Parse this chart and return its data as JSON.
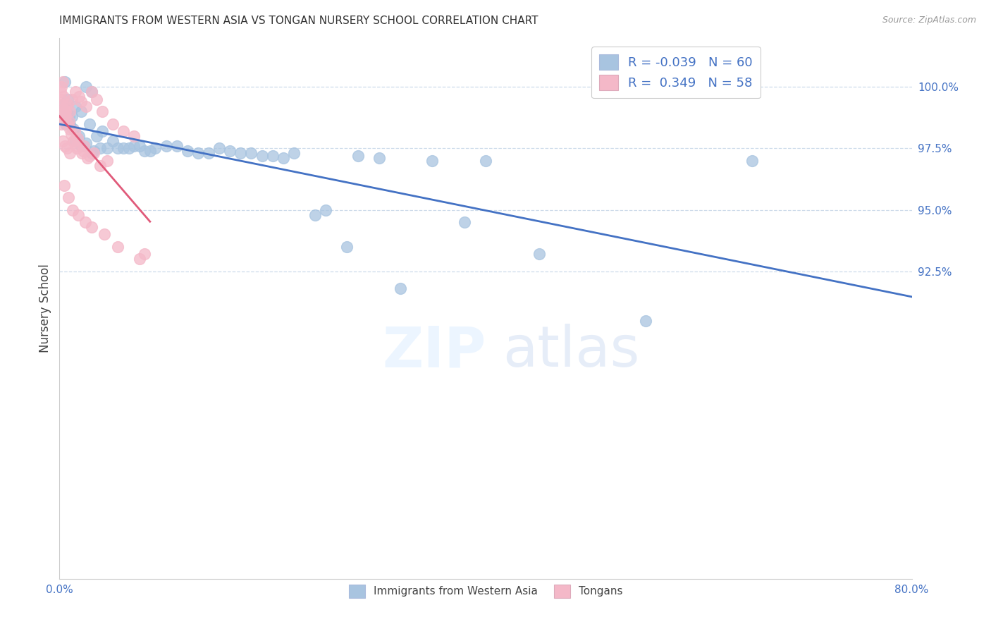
{
  "title": "IMMIGRANTS FROM WESTERN ASIA VS TONGAN NURSERY SCHOOL CORRELATION CHART",
  "source": "Source: ZipAtlas.com",
  "ylabel": "Nursery School",
  "xlim": [
    0.0,
    80.0
  ],
  "ylim": [
    80.0,
    102.0
  ],
  "legend_blue_r": "-0.039",
  "legend_blue_n": "60",
  "legend_pink_r": "0.349",
  "legend_pink_n": "58",
  "legend_label_blue": "Immigrants from Western Asia",
  "legend_label_pink": "Tongans",
  "blue_color": "#a8c4e0",
  "pink_color": "#f4b8c8",
  "line_blue": "#4472c4",
  "line_pink": "#e05a7a",
  "title_color": "#333333",
  "axis_label_color": "#444444",
  "tick_color": "#4472c4",
  "ytick_values": [
    92.5,
    95.0,
    97.5,
    100.0
  ],
  "blue_points_x": [
    2.5,
    3.0,
    0.5,
    0.8,
    1.2,
    1.5,
    2.0,
    2.8,
    3.5,
    4.0,
    5.0,
    6.0,
    7.0,
    8.0,
    10.0,
    12.0,
    15.0,
    18.0,
    20.0,
    22.0,
    25.0,
    28.0,
    30.0,
    35.0,
    38.0,
    1.0,
    1.5,
    2.0,
    3.0,
    4.5,
    0.3,
    0.6,
    1.8,
    2.5,
    3.2,
    5.5,
    7.5,
    9.0,
    11.0,
    14.0,
    16.0,
    19.0,
    21.0,
    24.0,
    27.0,
    32.0,
    40.0,
    45.0,
    55.0,
    65.0,
    0.4,
    0.9,
    1.3,
    1.7,
    2.3,
    3.8,
    6.5,
    8.5,
    13.0,
    17.0
  ],
  "blue_points_y": [
    100.0,
    99.8,
    100.2,
    99.5,
    98.8,
    99.2,
    99.0,
    98.5,
    98.0,
    98.2,
    97.8,
    97.5,
    97.6,
    97.4,
    97.6,
    97.4,
    97.5,
    97.3,
    97.2,
    97.3,
    95.0,
    97.2,
    97.1,
    97.0,
    94.5,
    98.5,
    97.8,
    97.6,
    97.3,
    97.5,
    99.0,
    98.5,
    98.0,
    97.7,
    97.4,
    97.5,
    97.6,
    97.5,
    97.6,
    97.3,
    97.4,
    97.2,
    97.1,
    94.8,
    93.5,
    91.8,
    97.0,
    93.2,
    90.5,
    97.0,
    99.3,
    98.8,
    98.3,
    97.9,
    97.6,
    97.5,
    97.5,
    97.4,
    97.3,
    97.3
  ],
  "pink_points_x": [
    0.2,
    0.4,
    0.5,
    0.6,
    0.8,
    1.0,
    1.2,
    1.5,
    1.8,
    2.0,
    2.5,
    3.0,
    3.5,
    4.0,
    5.0,
    6.0,
    7.0,
    0.3,
    0.5,
    0.7,
    1.0,
    1.3,
    1.6,
    2.2,
    2.8,
    0.1,
    0.2,
    0.3,
    0.4,
    0.6,
    0.9,
    1.4,
    1.7,
    2.3,
    3.2,
    4.5,
    0.15,
    0.25,
    0.35,
    0.55,
    0.75,
    0.95,
    1.1,
    1.35,
    1.65,
    2.1,
    2.6,
    3.8,
    0.45,
    0.85,
    1.25,
    1.75,
    2.4,
    3.0,
    4.2,
    5.5,
    7.5,
    8.0
  ],
  "pink_points_y": [
    98.5,
    98.8,
    99.0,
    99.2,
    99.3,
    99.0,
    99.5,
    99.8,
    99.6,
    99.4,
    99.2,
    99.8,
    99.5,
    99.0,
    98.5,
    98.2,
    98.0,
    97.8,
    97.6,
    97.5,
    97.3,
    97.8,
    97.6,
    97.4,
    97.2,
    99.8,
    100.0,
    100.2,
    99.6,
    99.0,
    98.6,
    98.2,
    97.9,
    97.6,
    97.3,
    97.0,
    99.5,
    99.3,
    99.1,
    98.8,
    98.5,
    98.3,
    98.1,
    97.8,
    97.5,
    97.3,
    97.1,
    96.8,
    96.0,
    95.5,
    95.0,
    94.8,
    94.5,
    94.3,
    94.0,
    93.5,
    93.0,
    93.2
  ]
}
